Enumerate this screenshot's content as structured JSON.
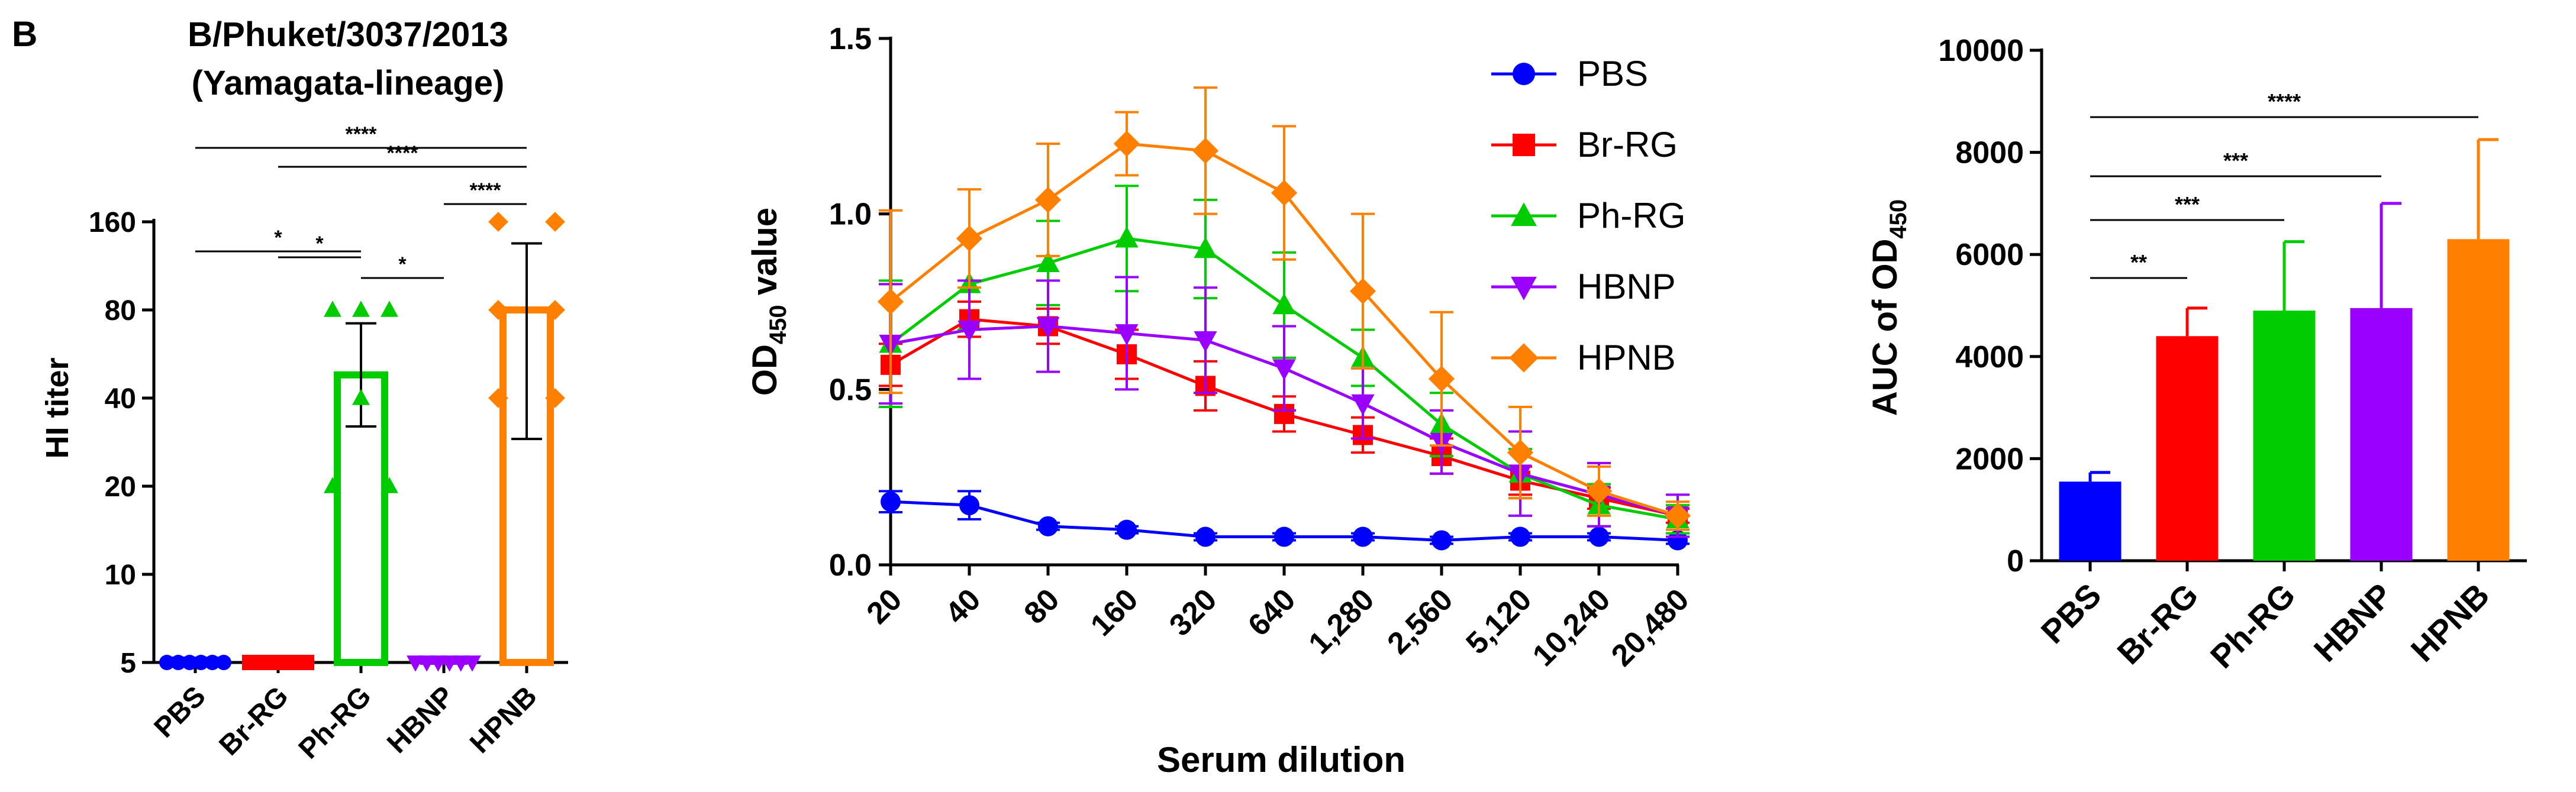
{
  "panel_letter": "B",
  "chart_data": [
    {
      "type": "bar",
      "title": [
        "B/Phuket/3037/2013",
        "(Yamagata-lineage)"
      ],
      "xlabel": "",
      "ylabel": "HI titer",
      "yscale": "log2",
      "yticks": [
        5,
        10,
        20,
        40,
        80,
        160
      ],
      "ylim": [
        5,
        160
      ],
      "categories": [
        "PBS",
        "Br-RG",
        "Ph-RG",
        "HBNP",
        "HPNB"
      ],
      "colors": [
        "#0000ff",
        "#ff0000",
        "#00cc00",
        "#9900ff",
        "#ff8000"
      ],
      "markers": [
        "circle",
        "square",
        "triangle-up",
        "triangle-down",
        "diamond"
      ],
      "values": [
        5,
        5,
        48,
        5,
        80
      ],
      "error_upper": [
        5,
        5,
        72,
        5,
        135
      ],
      "error_lower": [
        5,
        5,
        32,
        5,
        29
      ],
      "points": [
        [
          5,
          5,
          5,
          5,
          5,
          5
        ],
        [
          5,
          5,
          5,
          5,
          5,
          5
        ],
        [
          80,
          80,
          80,
          40,
          20,
          20
        ],
        [
          5,
          5,
          5,
          5,
          5,
          5
        ],
        [
          160,
          160,
          80,
          80,
          40,
          40
        ]
      ],
      "significance": [
        {
          "from": "PBS",
          "to": "HPNB",
          "label": "****"
        },
        {
          "from": "Br-RG",
          "to": "HPNB",
          "label": "****"
        },
        {
          "from": "HBNP",
          "to": "HPNB",
          "label": "****"
        },
        {
          "from": "Br-RG",
          "to": "Ph-RG",
          "label": "*"
        },
        {
          "from": "Ph-RG",
          "to": "HBNP",
          "label": "*"
        },
        {
          "from": "PBS",
          "to": "Ph-RG",
          "label": "*"
        }
      ]
    },
    {
      "type": "line",
      "xlabel": "Serum dilution",
      "ylabel": "OD450 value",
      "ylabel_main": "OD",
      "ylabel_sub": "450",
      "ylabel_suffix": " value",
      "ylim": [
        0,
        1.5
      ],
      "yticks": [
        0.0,
        0.5,
        1.0,
        1.5
      ],
      "ytick_labels": [
        "0.0",
        "0.5",
        "1.0",
        "1.5"
      ],
      "x": [
        "20",
        "40",
        "80",
        "160",
        "320",
        "640",
        "1,280",
        "2,560",
        "5,120",
        "10,240",
        "20,480"
      ],
      "legend_position": "top-right",
      "series": [
        {
          "name": "PBS",
          "color": "#0000ff",
          "marker": "circle",
          "values": [
            0.18,
            0.17,
            0.11,
            0.1,
            0.08,
            0.08,
            0.08,
            0.07,
            0.08,
            0.08,
            0.07
          ],
          "errors": [
            0.03,
            0.04,
            0.01,
            0.01,
            0.01,
            0.01,
            0.01,
            0.01,
            0.01,
            0.01,
            0.01
          ]
        },
        {
          "name": "Br-RG",
          "color": "#ff0000",
          "marker": "square",
          "values": [
            0.57,
            0.7,
            0.68,
            0.6,
            0.51,
            0.43,
            0.37,
            0.31,
            0.24,
            0.19,
            0.14
          ],
          "errors": [
            0.06,
            0.05,
            0.05,
            0.07,
            0.07,
            0.05,
            0.05,
            0.05,
            0.04,
            0.03,
            0.02
          ]
        },
        {
          "name": "Ph-RG",
          "color": "#00cc00",
          "marker": "triangle-up",
          "values": [
            0.63,
            0.8,
            0.86,
            0.93,
            0.9,
            0.74,
            0.59,
            0.4,
            0.26,
            0.17,
            0.13
          ],
          "errors": [
            0.18,
            0.13,
            0.12,
            0.15,
            0.14,
            0.15,
            0.08,
            0.09,
            0.07,
            0.06,
            0.04
          ]
        },
        {
          "name": "HBNP",
          "color": "#9900ff",
          "marker": "triangle-down",
          "values": [
            0.63,
            0.67,
            0.68,
            0.66,
            0.64,
            0.56,
            0.46,
            0.35,
            0.26,
            0.2,
            0.14
          ],
          "errors": [
            0.17,
            0.14,
            0.13,
            0.16,
            0.15,
            0.12,
            0.1,
            0.09,
            0.12,
            0.09,
            0.06
          ]
        },
        {
          "name": "HPNB",
          "color": "#ff8000",
          "marker": "diamond",
          "values": [
            0.75,
            0.93,
            1.04,
            1.2,
            1.18,
            1.06,
            0.78,
            0.53,
            0.32,
            0.21,
            0.14
          ],
          "errors": [
            0.26,
            0.14,
            0.16,
            0.09,
            0.18,
            0.19,
            0.22,
            0.19,
            0.13,
            0.07,
            0.04
          ]
        }
      ]
    },
    {
      "type": "bar",
      "xlabel": "",
      "ylabel": "AUC of OD450",
      "ylabel_main": "AUC of OD",
      "ylabel_sub": "450",
      "ylim": [
        0,
        10000
      ],
      "yticks": [
        0,
        2000,
        4000,
        6000,
        8000,
        10000
      ],
      "categories": [
        "PBS",
        "Br-RG",
        "Ph-RG",
        "HBNP",
        "HPNB"
      ],
      "colors": [
        "#0000ff",
        "#ff0000",
        "#00cc00",
        "#9900ff",
        "#ff8000"
      ],
      "values": [
        1550,
        4400,
        4900,
        4950,
        6300
      ],
      "errors": [
        180,
        550,
        1350,
        2050,
        1950
      ],
      "significance": [
        {
          "from": "PBS",
          "to": "HPNB",
          "label": "****"
        },
        {
          "from": "PBS",
          "to": "HBNP",
          "label": "***"
        },
        {
          "from": "PBS",
          "to": "Ph-RG",
          "label": "***"
        },
        {
          "from": "PBS",
          "to": "Br-RG",
          "label": "**"
        }
      ]
    }
  ]
}
